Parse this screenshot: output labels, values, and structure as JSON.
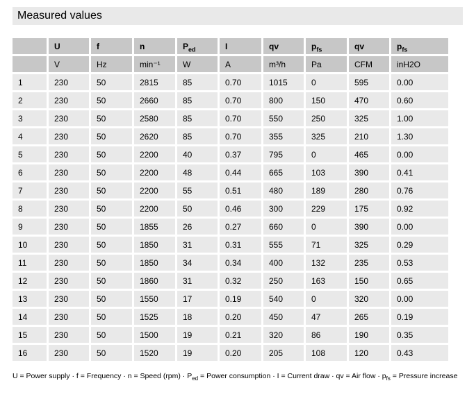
{
  "title": "Measured values",
  "colors": {
    "title_bar_bg": "#e9e9e9",
    "header_cell_bg": "#c7c7c7",
    "data_cell_bg": "#e9e9e9",
    "text": "#000000"
  },
  "table": {
    "header_symbols": [
      {
        "text": "",
        "sub": ""
      },
      {
        "text": "U",
        "sub": ""
      },
      {
        "text": "f",
        "sub": ""
      },
      {
        "text": "n",
        "sub": ""
      },
      {
        "text": "P",
        "sub": "ed"
      },
      {
        "text": "I",
        "sub": ""
      },
      {
        "text": "qv",
        "sub": ""
      },
      {
        "text": "p",
        "sub": "fs"
      },
      {
        "text": "qv",
        "sub": ""
      },
      {
        "text": "p",
        "sub": "fs"
      }
    ],
    "header_units": [
      "",
      "V",
      "Hz",
      "min⁻¹",
      "W",
      "A",
      "m³/h",
      "Pa",
      "CFM",
      "inH2O"
    ],
    "rows": [
      [
        "1",
        "230",
        "50",
        "2815",
        "85",
        "0.70",
        "1015",
        "0",
        "595",
        "0.00"
      ],
      [
        "2",
        "230",
        "50",
        "2660",
        "85",
        "0.70",
        "800",
        "150",
        "470",
        "0.60"
      ],
      [
        "3",
        "230",
        "50",
        "2580",
        "85",
        "0.70",
        "550",
        "250",
        "325",
        "1.00"
      ],
      [
        "4",
        "230",
        "50",
        "2620",
        "85",
        "0.70",
        "355",
        "325",
        "210",
        "1.30"
      ],
      [
        "5",
        "230",
        "50",
        "2200",
        "40",
        "0.37",
        "795",
        "0",
        "465",
        "0.00"
      ],
      [
        "6",
        "230",
        "50",
        "2200",
        "48",
        "0.44",
        "665",
        "103",
        "390",
        "0.41"
      ],
      [
        "7",
        "230",
        "50",
        "2200",
        "55",
        "0.51",
        "480",
        "189",
        "280",
        "0.76"
      ],
      [
        "8",
        "230",
        "50",
        "2200",
        "50",
        "0.46",
        "300",
        "229",
        "175",
        "0.92"
      ],
      [
        "9",
        "230",
        "50",
        "1855",
        "26",
        "0.27",
        "660",
        "0",
        "390",
        "0.00"
      ],
      [
        "10",
        "230",
        "50",
        "1850",
        "31",
        "0.31",
        "555",
        "71",
        "325",
        "0.29"
      ],
      [
        "11",
        "230",
        "50",
        "1850",
        "34",
        "0.34",
        "400",
        "132",
        "235",
        "0.53"
      ],
      [
        "12",
        "230",
        "50",
        "1860",
        "31",
        "0.32",
        "250",
        "163",
        "150",
        "0.65"
      ],
      [
        "13",
        "230",
        "50",
        "1550",
        "17",
        "0.19",
        "540",
        "0",
        "320",
        "0.00"
      ],
      [
        "14",
        "230",
        "50",
        "1525",
        "18",
        "0.20",
        "450",
        "47",
        "265",
        "0.19"
      ],
      [
        "15",
        "230",
        "50",
        "1500",
        "19",
        "0.21",
        "320",
        "86",
        "190",
        "0.35"
      ],
      [
        "16",
        "230",
        "50",
        "1520",
        "19",
        "0.20",
        "205",
        "108",
        "120",
        "0.43"
      ]
    ]
  },
  "footer": {
    "part1": "U = Power supply · f = Frequency · n = Speed (rpm) · P",
    "sub1": "ed",
    "part2": " = Power consumption  · I = Current draw · qv = Air flow · p",
    "sub2": "fs",
    "part3": " = Pressure increase"
  }
}
